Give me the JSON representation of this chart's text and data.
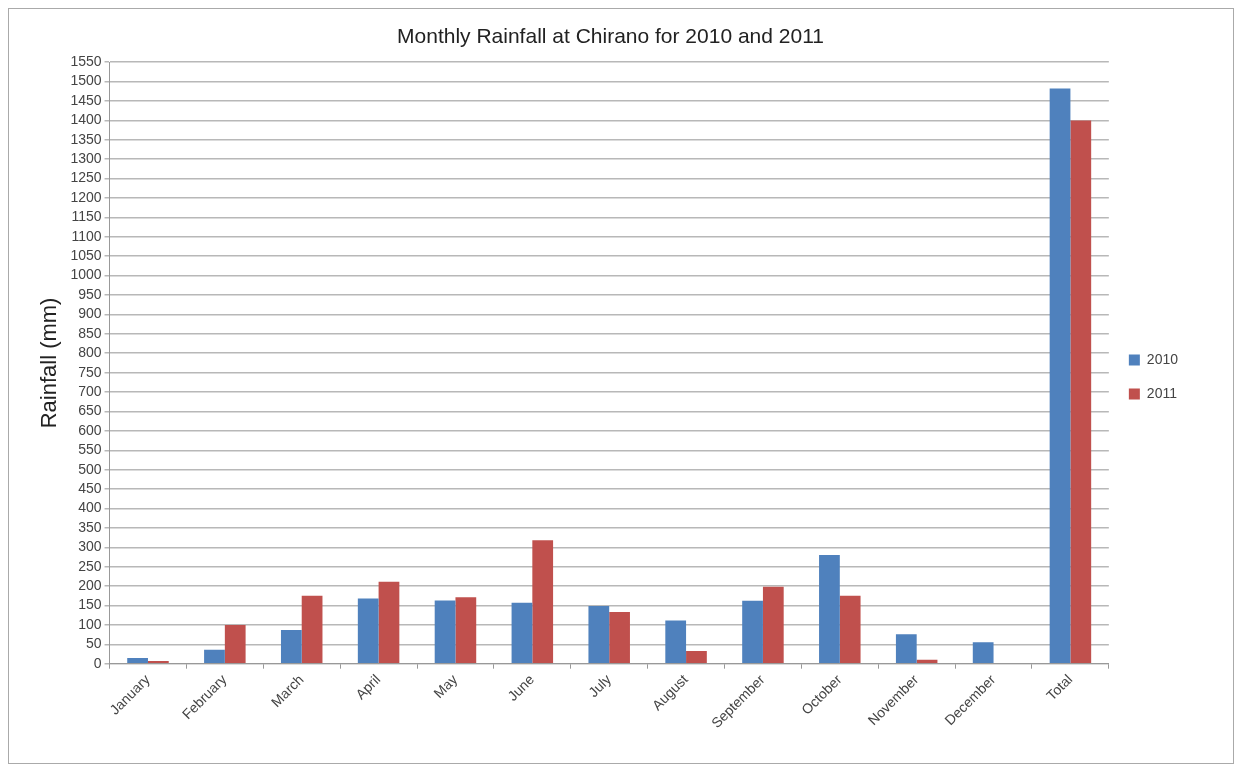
{
  "chart_data": {
    "type": "bar",
    "title": "Monthly Rainfall at Chirano for 2010 and 2011",
    "ylabel": "Rainfall (mm)",
    "categories": [
      "January",
      "February",
      "March",
      "April",
      "May",
      "June",
      "July",
      "August",
      "September",
      "October",
      "November",
      "December",
      "Total"
    ],
    "series": [
      {
        "name": "2010",
        "color": "#4f81bd",
        "values": [
          15,
          36,
          87,
          168,
          163,
          157,
          149,
          111,
          162,
          280,
          76,
          55,
          1482
        ]
      },
      {
        "name": "2011",
        "color": "#c0504d",
        "values": [
          7,
          100,
          175,
          211,
          171,
          318,
          133,
          33,
          198,
          175,
          10,
          null,
          1400
        ]
      }
    ],
    "ylim": [
      0,
      1550
    ],
    "yticks": [
      0,
      50,
      100,
      150,
      200,
      250,
      300,
      350,
      400,
      450,
      500,
      550,
      600,
      650,
      700,
      750,
      800,
      850,
      900,
      950,
      1000,
      1050,
      1100,
      1150,
      1200,
      1250,
      1300,
      1350,
      1400,
      1450,
      1500,
      1550
    ],
    "grid": "y",
    "legend": "right"
  }
}
